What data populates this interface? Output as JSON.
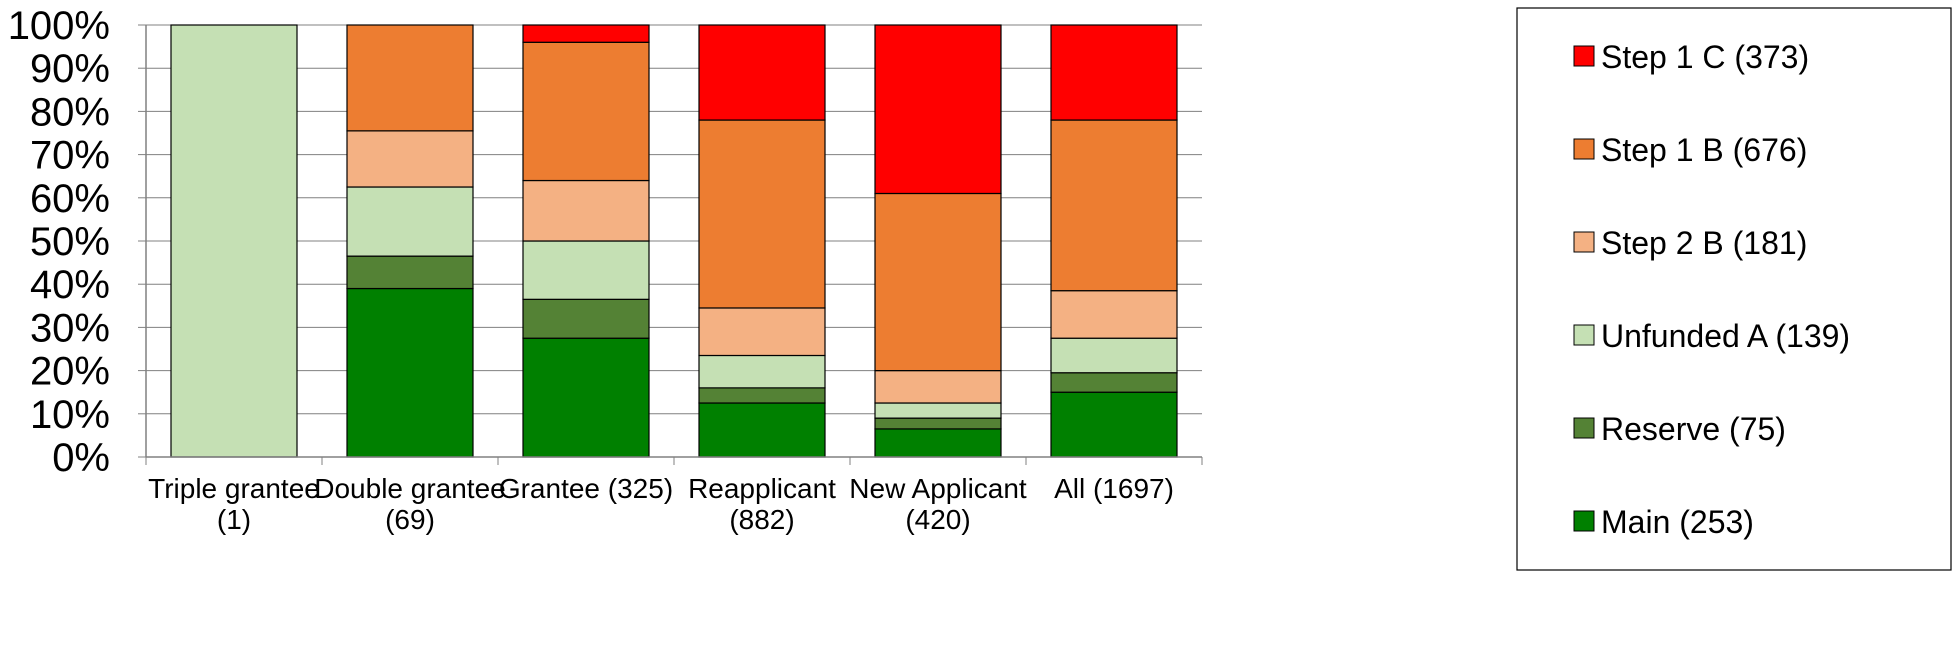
{
  "chart_data": {
    "type": "bar",
    "stacked": true,
    "percent_stacked": true,
    "categories": [
      [
        "Triple grantee",
        "(1)"
      ],
      [
        "Double grantee",
        "(69)"
      ],
      [
        "Grantee (325)"
      ],
      [
        "Reapplicant",
        "(882)"
      ],
      [
        "New Applicant",
        "(420)"
      ],
      [
        "All (1697)"
      ]
    ],
    "series": [
      {
        "name": "Main (253)",
        "color": "#008000",
        "values": [
          0,
          39,
          27.5,
          12.5,
          6.5,
          15
        ]
      },
      {
        "name": "Reserve (75)",
        "color": "#548235",
        "values": [
          0,
          7.5,
          9,
          3.5,
          2.5,
          4.5
        ]
      },
      {
        "name": "Unfunded A (139)",
        "color": "#C5E0B4",
        "values": [
          100,
          16,
          13.5,
          7.5,
          3.5,
          8
        ]
      },
      {
        "name": "Step 2 B (181)",
        "color": "#F4B183",
        "values": [
          0,
          13,
          14,
          11,
          7.5,
          11
        ]
      },
      {
        "name": "Step 1 B (676)",
        "color": "#ED7D31",
        "values": [
          0,
          24.5,
          32,
          43.5,
          41,
          39.5
        ]
      },
      {
        "name": "Step 1 C (373)",
        "color": "#FF0000",
        "values": [
          0,
          0,
          4,
          22,
          39,
          22
        ]
      }
    ],
    "y_ticks": [
      "0%",
      "10%",
      "20%",
      "30%",
      "40%",
      "50%",
      "60%",
      "70%",
      "80%",
      "90%",
      "100%"
    ],
    "ylim": [
      0,
      100
    ],
    "grid": true,
    "legend": {
      "placement": "right",
      "order": [
        "Step 1 C (373)",
        "Step 1 B (676)",
        "Step 2 B (181)",
        "Unfunded A (139)",
        "Reserve (75)",
        "Main (253)"
      ]
    }
  }
}
